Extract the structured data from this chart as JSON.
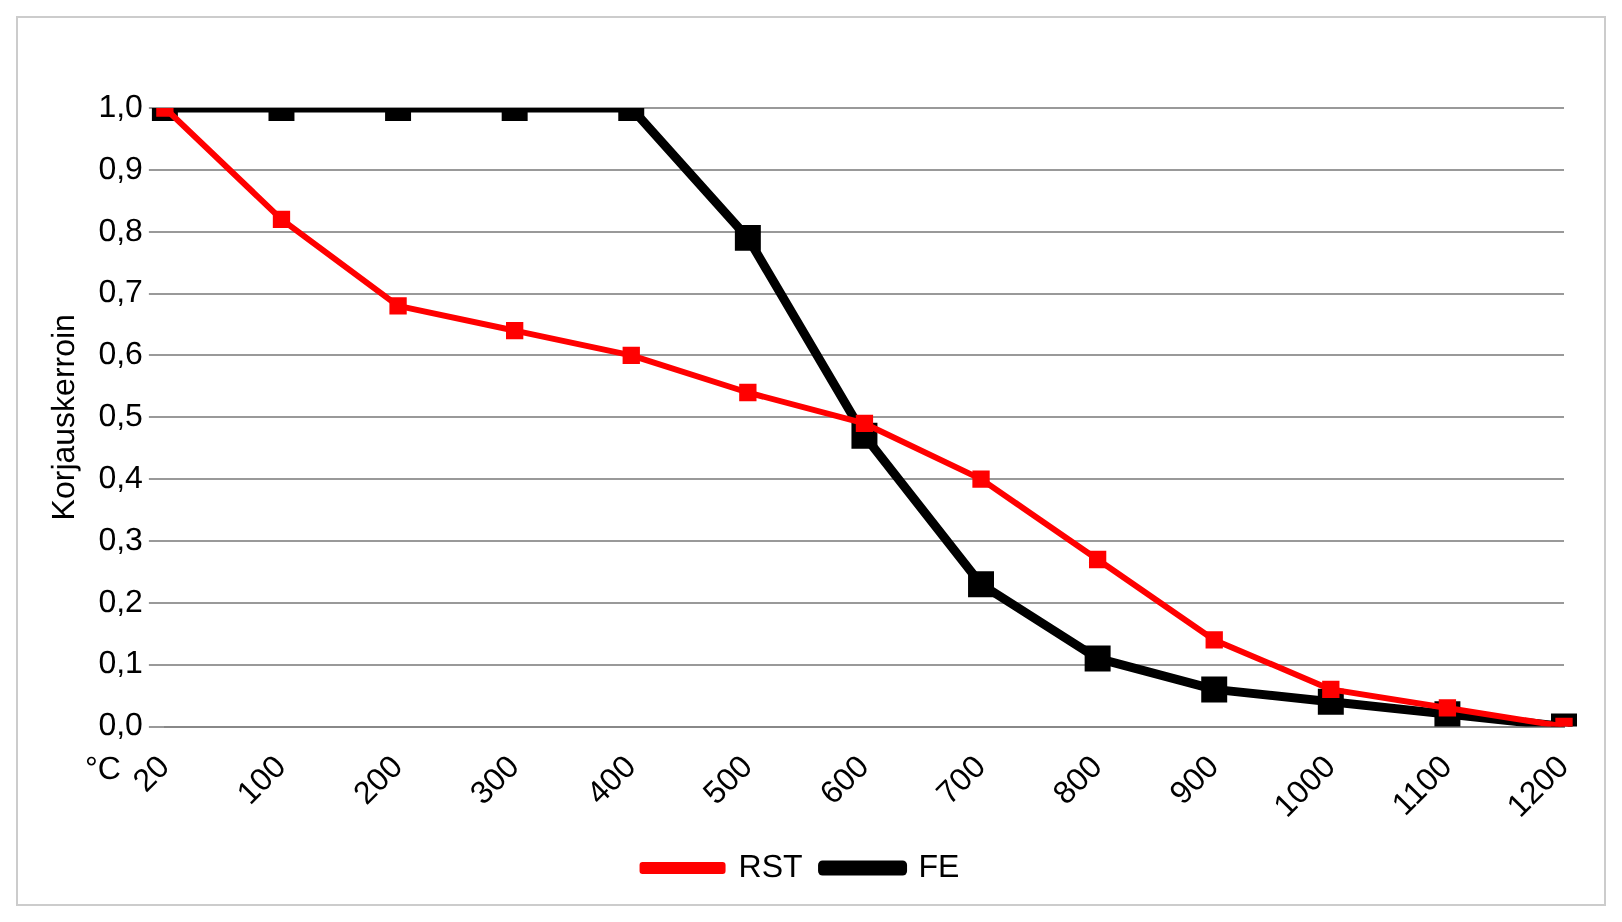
{
  "chart_data": {
    "type": "line",
    "ylabel": "Korjauskerroin",
    "xlabel": "°C",
    "categories": [
      "20",
      "100",
      "200",
      "300",
      "400",
      "500",
      "600",
      "700",
      "800",
      "900",
      "1000",
      "1100",
      "1200"
    ],
    "series": [
      {
        "name": "RST",
        "color": "#ff0000",
        "values": [
          1.0,
          0.82,
          0.68,
          0.64,
          0.6,
          0.54,
          0.49,
          0.4,
          0.27,
          0.14,
          0.06,
          0.03,
          0.0
        ]
      },
      {
        "name": "FE",
        "color": "#000000",
        "values": [
          1.0,
          1.0,
          1.0,
          1.0,
          1.0,
          0.79,
          0.47,
          0.23,
          0.11,
          0.06,
          0.04,
          0.02,
          0.0
        ]
      }
    ],
    "ylim": [
      0,
      1
    ],
    "yticks": [
      {
        "value": 0,
        "label": "0,0"
      },
      {
        "value": 0.1,
        "label": "0,1"
      },
      {
        "value": 0.2,
        "label": "0,2"
      },
      {
        "value": 0.3,
        "label": "0,3"
      },
      {
        "value": 0.4,
        "label": "0,4"
      },
      {
        "value": 0.5,
        "label": "0,5"
      },
      {
        "value": 0.6,
        "label": "0,6"
      },
      {
        "value": 0.7,
        "label": "0,7"
      },
      {
        "value": 0.8,
        "label": "0,8"
      },
      {
        "value": 0.9,
        "label": "0,9"
      },
      {
        "value": 1,
        "label": "1,0"
      }
    ],
    "grid": "y",
    "legend": "bottom",
    "marker": "square",
    "line_style": "solid"
  }
}
